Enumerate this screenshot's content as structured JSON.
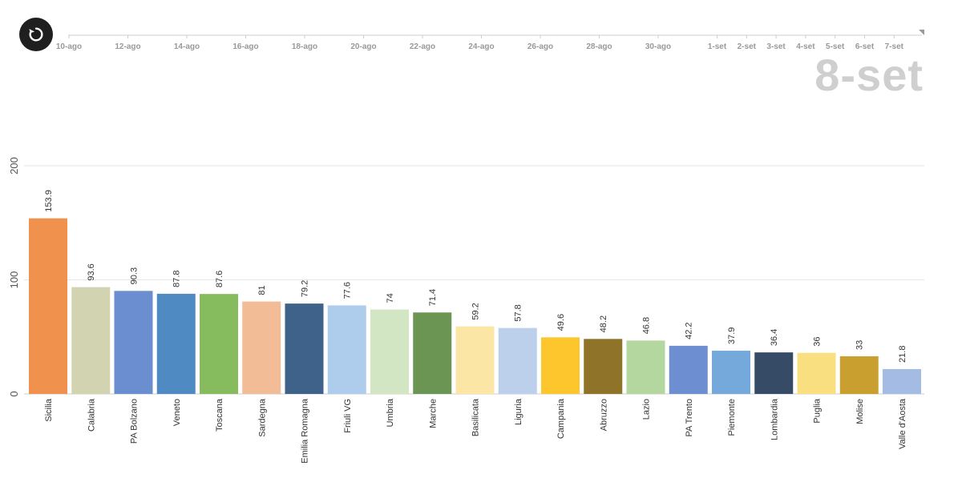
{
  "player": {
    "replay_icon": "replay-icon",
    "current_date": "8-set",
    "timeline_labels": [
      "10-ago",
      "12-ago",
      "14-ago",
      "16-ago",
      "18-ago",
      "20-ago",
      "22-ago",
      "24-ago",
      "26-ago",
      "28-ago",
      "30-ago",
      "1-set",
      "2-set",
      "3-set",
      "4-set",
      "5-set",
      "6-set",
      "7-set"
    ]
  },
  "chart_data": {
    "type": "bar",
    "title": "",
    "xlabel": "",
    "ylabel": "",
    "ylim": [
      0,
      200
    ],
    "yticks": [
      0,
      100,
      200
    ],
    "grid": true,
    "categories": [
      "Sicilia",
      "Calabria",
      "PA Bolzano",
      "Veneto",
      "Toscana",
      "Sardegna",
      "Emilia Romagna",
      "Friuli VG",
      "Umbria",
      "Marche",
      "Basilicata",
      "Liguria",
      "Campania",
      "Abruzzo",
      "Lazio",
      "PA Trento",
      "Piemonte",
      "Lombardia",
      "Puglia",
      "Molise",
      "Valle d'Aosta"
    ],
    "values": [
      153.9,
      93.6,
      90.3,
      87.8,
      87.6,
      81,
      79.2,
      77.6,
      74,
      71.4,
      59.2,
      57.8,
      49.6,
      48.2,
      46.8,
      42.2,
      37.9,
      36.4,
      36,
      33,
      21.8
    ],
    "value_labels": [
      "153.9",
      "93.6",
      "90.3",
      "87.8",
      "87.6",
      "81",
      "79.2",
      "77.6",
      "74",
      "71.4",
      "59.2",
      "57.8",
      "49.6",
      "48.2",
      "46.8",
      "42.2",
      "37.9",
      "36.4",
      "36",
      "33",
      "21.8"
    ],
    "colors": [
      "#f0924e",
      "#d2d4b1",
      "#6a8ecf",
      "#4f8ac2",
      "#86bb5e",
      "#f2bc96",
      "#3f628b",
      "#aecdec",
      "#d3e6c4",
      "#6b9552",
      "#fbe6a5",
      "#bccfeb",
      "#fcc62c",
      "#8e7329",
      "#b3d79f",
      "#6d8fd1",
      "#76a9db",
      "#354b66",
      "#fadf80",
      "#c9a02f",
      "#a4bce3"
    ]
  }
}
